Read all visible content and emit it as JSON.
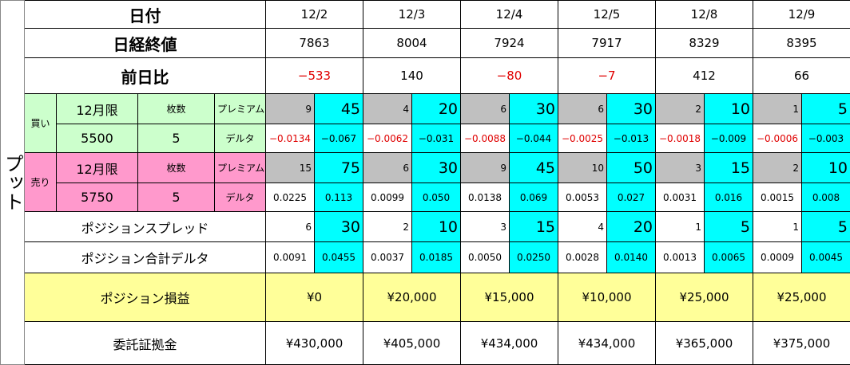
{
  "side_label": "プット",
  "header": {
    "date_label": "日付",
    "nikkei_label": "日経終値",
    "change_label": "前日比"
  },
  "dates": [
    "12/2",
    "12/3",
    "12/4",
    "12/5",
    "12/8",
    "12/9"
  ],
  "nikkei": [
    "7863",
    "8004",
    "7924",
    "7917",
    "8329",
    "8395"
  ],
  "change": [
    "−533",
    "140",
    "−80",
    "−7",
    "412",
    "66"
  ],
  "change_negative": [
    true,
    false,
    true,
    true,
    false,
    false
  ],
  "buy": {
    "side": "買い",
    "month": "12月限",
    "qty_label": "枚数",
    "premium_label": "プレミアム",
    "strike": "5500",
    "qty": "5",
    "delta_label": "デルタ",
    "premium": [
      [
        "9",
        "45"
      ],
      [
        "4",
        "20"
      ],
      [
        "6",
        "30"
      ],
      [
        "6",
        "30"
      ],
      [
        "2",
        "10"
      ],
      [
        "1",
        "5"
      ]
    ],
    "delta": [
      [
        "−0.0134",
        "−0.067"
      ],
      [
        "−0.0062",
        "−0.031"
      ],
      [
        "−0.0088",
        "−0.044"
      ],
      [
        "−0.0025",
        "−0.013"
      ],
      [
        "−0.0018",
        "−0.009"
      ],
      [
        "−0.0006",
        "−0.003"
      ]
    ]
  },
  "sell": {
    "side": "売り",
    "month": "12月限",
    "qty_label": "枚数",
    "premium_label": "プレミアム",
    "strike": "5750",
    "qty": "5",
    "delta_label": "デルタ",
    "premium": [
      [
        "15",
        "75"
      ],
      [
        "6",
        "30"
      ],
      [
        "9",
        "45"
      ],
      [
        "10",
        "50"
      ],
      [
        "3",
        "15"
      ],
      [
        "2",
        "10"
      ]
    ],
    "delta": [
      [
        "0.0225",
        "0.113"
      ],
      [
        "0.0099",
        "0.050"
      ],
      [
        "0.0138",
        "0.069"
      ],
      [
        "0.0053",
        "0.027"
      ],
      [
        "0.0031",
        "0.016"
      ],
      [
        "0.0015",
        "0.008"
      ]
    ]
  },
  "spread": {
    "label": "ポジションスプレッド",
    "values": [
      [
        "6",
        "30"
      ],
      [
        "2",
        "10"
      ],
      [
        "3",
        "15"
      ],
      [
        "4",
        "20"
      ],
      [
        "1",
        "5"
      ],
      [
        "1",
        "5"
      ]
    ]
  },
  "total_delta": {
    "label": "ポジション合計デルタ",
    "values": [
      [
        "0.0091",
        "0.0455"
      ],
      [
        "0.0037",
        "0.0185"
      ],
      [
        "0.0050",
        "0.0250"
      ],
      [
        "0.0028",
        "0.0140"
      ],
      [
        "0.0013",
        "0.0065"
      ],
      [
        "0.0009",
        "0.0045"
      ]
    ]
  },
  "pnl": {
    "label": "ポジション損益",
    "values": [
      "¥0",
      "¥20,000",
      "¥15,000",
      "¥10,000",
      "¥25,000",
      "¥25,000"
    ]
  },
  "margin": {
    "label": "委託証拠金",
    "values": [
      "¥430,000",
      "¥405,000",
      "¥434,000",
      "¥434,000",
      "¥365,000",
      "¥375,000"
    ]
  },
  "colors": {
    "cyan": "#00ffff",
    "gray": "#c0c0c0",
    "buy": "#ccffcc",
    "sell": "#ff99cc",
    "summary": "#ffff99",
    "negative": "#e00000"
  }
}
